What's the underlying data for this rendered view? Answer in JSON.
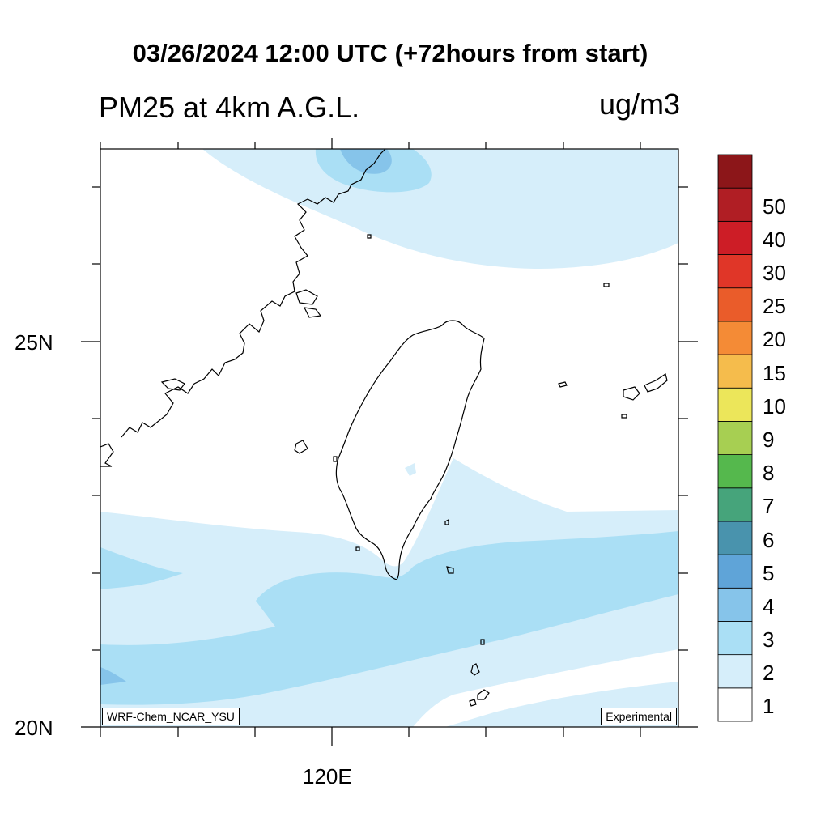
{
  "header": {
    "title": "03/26/2024 12:00 UTC (+72hours from start)",
    "variable": "PM25 at 4km A.G.L.",
    "units": "ug/m3"
  },
  "map": {
    "lat_labels": [
      "25N",
      "20N"
    ],
    "lon_labels": [
      "120E"
    ],
    "model_tag": "WRF-Chem_NCAR_YSU",
    "status_tag": "Experimental"
  },
  "legend": {
    "levels": [
      "1",
      "2",
      "3",
      "4",
      "5",
      "6",
      "7",
      "8",
      "9",
      "10",
      "15",
      "20",
      "25",
      "30",
      "40",
      "50"
    ],
    "colors": [
      "#ffffff",
      "#d6eefa",
      "#aadff5",
      "#86c4ea",
      "#5fa4d8",
      "#4993ad",
      "#46a47b",
      "#55b84d",
      "#a7cf52",
      "#ece65a",
      "#f5bc4c",
      "#f48b36",
      "#ea5c2a",
      "#e03628",
      "#cd1d26",
      "#b01e24",
      "#8c1619"
    ]
  }
}
